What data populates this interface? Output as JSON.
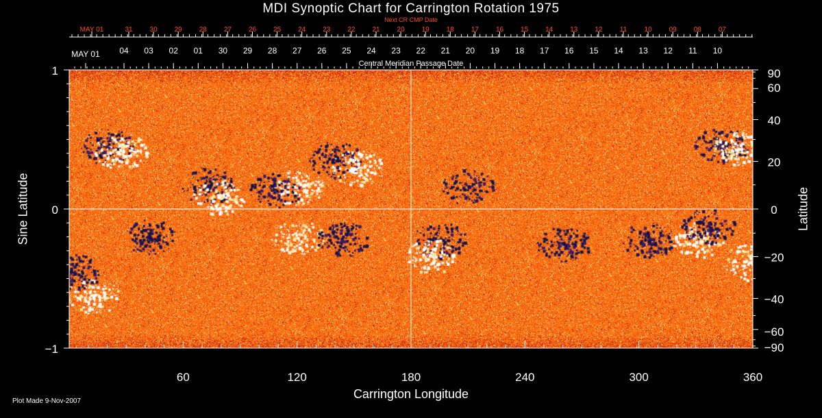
{
  "chart_data": {
    "type": "heatmap",
    "title": "MDI Synoptic Chart for Carrington Rotation 1975",
    "top_axis_title": "Next CR CMP Date",
    "second_axis_title": "Central Meridian Passage Date",
    "xlabel": "Carrington Longitude",
    "ylabel": "Sine Latitude",
    "ylabel_right": "Latitude",
    "xlim": [
      0,
      360
    ],
    "ylim": [
      -1,
      1
    ],
    "x_ticks": [
      "60",
      "120",
      "180",
      "240",
      "300",
      "360"
    ],
    "x_tick_values": [
      60,
      120,
      180,
      240,
      300,
      360
    ],
    "y_ticks": [
      "1",
      "0",
      "−1"
    ],
    "y_tick_values": [
      1,
      0,
      -1
    ],
    "right_ticks": [
      "90",
      "60",
      "40",
      "20",
      "0",
      "−20",
      "−40",
      "−60",
      "−90"
    ],
    "right_tick_values": [
      90,
      60,
      40,
      20,
      0,
      -20,
      -40,
      -60,
      -90
    ],
    "next_cr_dates": [
      "MAY 01",
      "31",
      "30",
      "29",
      "28",
      "27",
      "26",
      "25",
      "24",
      "23",
      "22",
      "21",
      "20",
      "19",
      "18",
      "17",
      "16",
      "15",
      "14",
      "13",
      "12",
      "11",
      "10",
      "09",
      "08",
      "07"
    ],
    "cmp_dates": [
      "MAY 01",
      "04",
      "03",
      "02",
      "01",
      "30",
      "29",
      "28",
      "27",
      "26",
      "25",
      "24",
      "23",
      "22",
      "21",
      "20",
      "19",
      "18",
      "17",
      "16",
      "15",
      "14",
      "13",
      "12",
      "11",
      "10"
    ],
    "gridlines": {
      "x": [
        180
      ],
      "y": [
        0
      ]
    },
    "colors": {
      "background": "#000000",
      "text": "#ffffff",
      "top_axis": "#ff4a1a",
      "field_base": "#ff5a00",
      "positive": "#ffffff",
      "negative": "#14124a"
    },
    "regions": [
      {
        "lon": 20,
        "sinlat": 0.45,
        "polarity": "negative"
      },
      {
        "lon": 27,
        "sinlat": 0.42,
        "polarity": "positive"
      },
      {
        "lon": 73,
        "sinlat": 0.17,
        "polarity": "negative"
      },
      {
        "lon": 79,
        "sinlat": 0.09,
        "polarity": "positive"
      },
      {
        "lon": 140,
        "sinlat": 0.36,
        "polarity": "negative"
      },
      {
        "lon": 152,
        "sinlat": 0.3,
        "polarity": "positive"
      },
      {
        "lon": 120,
        "sinlat": 0.16,
        "polarity": "positive"
      },
      {
        "lon": 108,
        "sinlat": 0.14,
        "polarity": "negative"
      },
      {
        "lon": 210,
        "sinlat": 0.16,
        "polarity": "negative"
      },
      {
        "lon": 343,
        "sinlat": 0.46,
        "polarity": "negative"
      },
      {
        "lon": 352,
        "sinlat": 0.44,
        "polarity": "positive"
      },
      {
        "lon": 195,
        "sinlat": -0.22,
        "polarity": "negative"
      },
      {
        "lon": 190,
        "sinlat": -0.34,
        "polarity": "positive"
      },
      {
        "lon": 330,
        "sinlat": -0.22,
        "polarity": "positive"
      },
      {
        "lon": 336,
        "sinlat": -0.12,
        "polarity": "negative"
      },
      {
        "lon": 358,
        "sinlat": -0.38,
        "polarity": "positive"
      },
      {
        "lon": 305,
        "sinlat": -0.22,
        "polarity": "negative"
      },
      {
        "lon": 42,
        "sinlat": -0.2,
        "polarity": "negative"
      },
      {
        "lon": 120,
        "sinlat": -0.2,
        "polarity": "positive"
      },
      {
        "lon": 144,
        "sinlat": -0.22,
        "polarity": "negative"
      },
      {
        "lon": 260,
        "sinlat": -0.25,
        "polarity": "negative"
      },
      {
        "lon": 12,
        "sinlat": -0.62,
        "polarity": "positive"
      },
      {
        "lon": 2,
        "sinlat": -0.45,
        "polarity": "negative"
      }
    ]
  },
  "footer": {
    "plot_made": "Plot Made  9-Nov-2007"
  }
}
